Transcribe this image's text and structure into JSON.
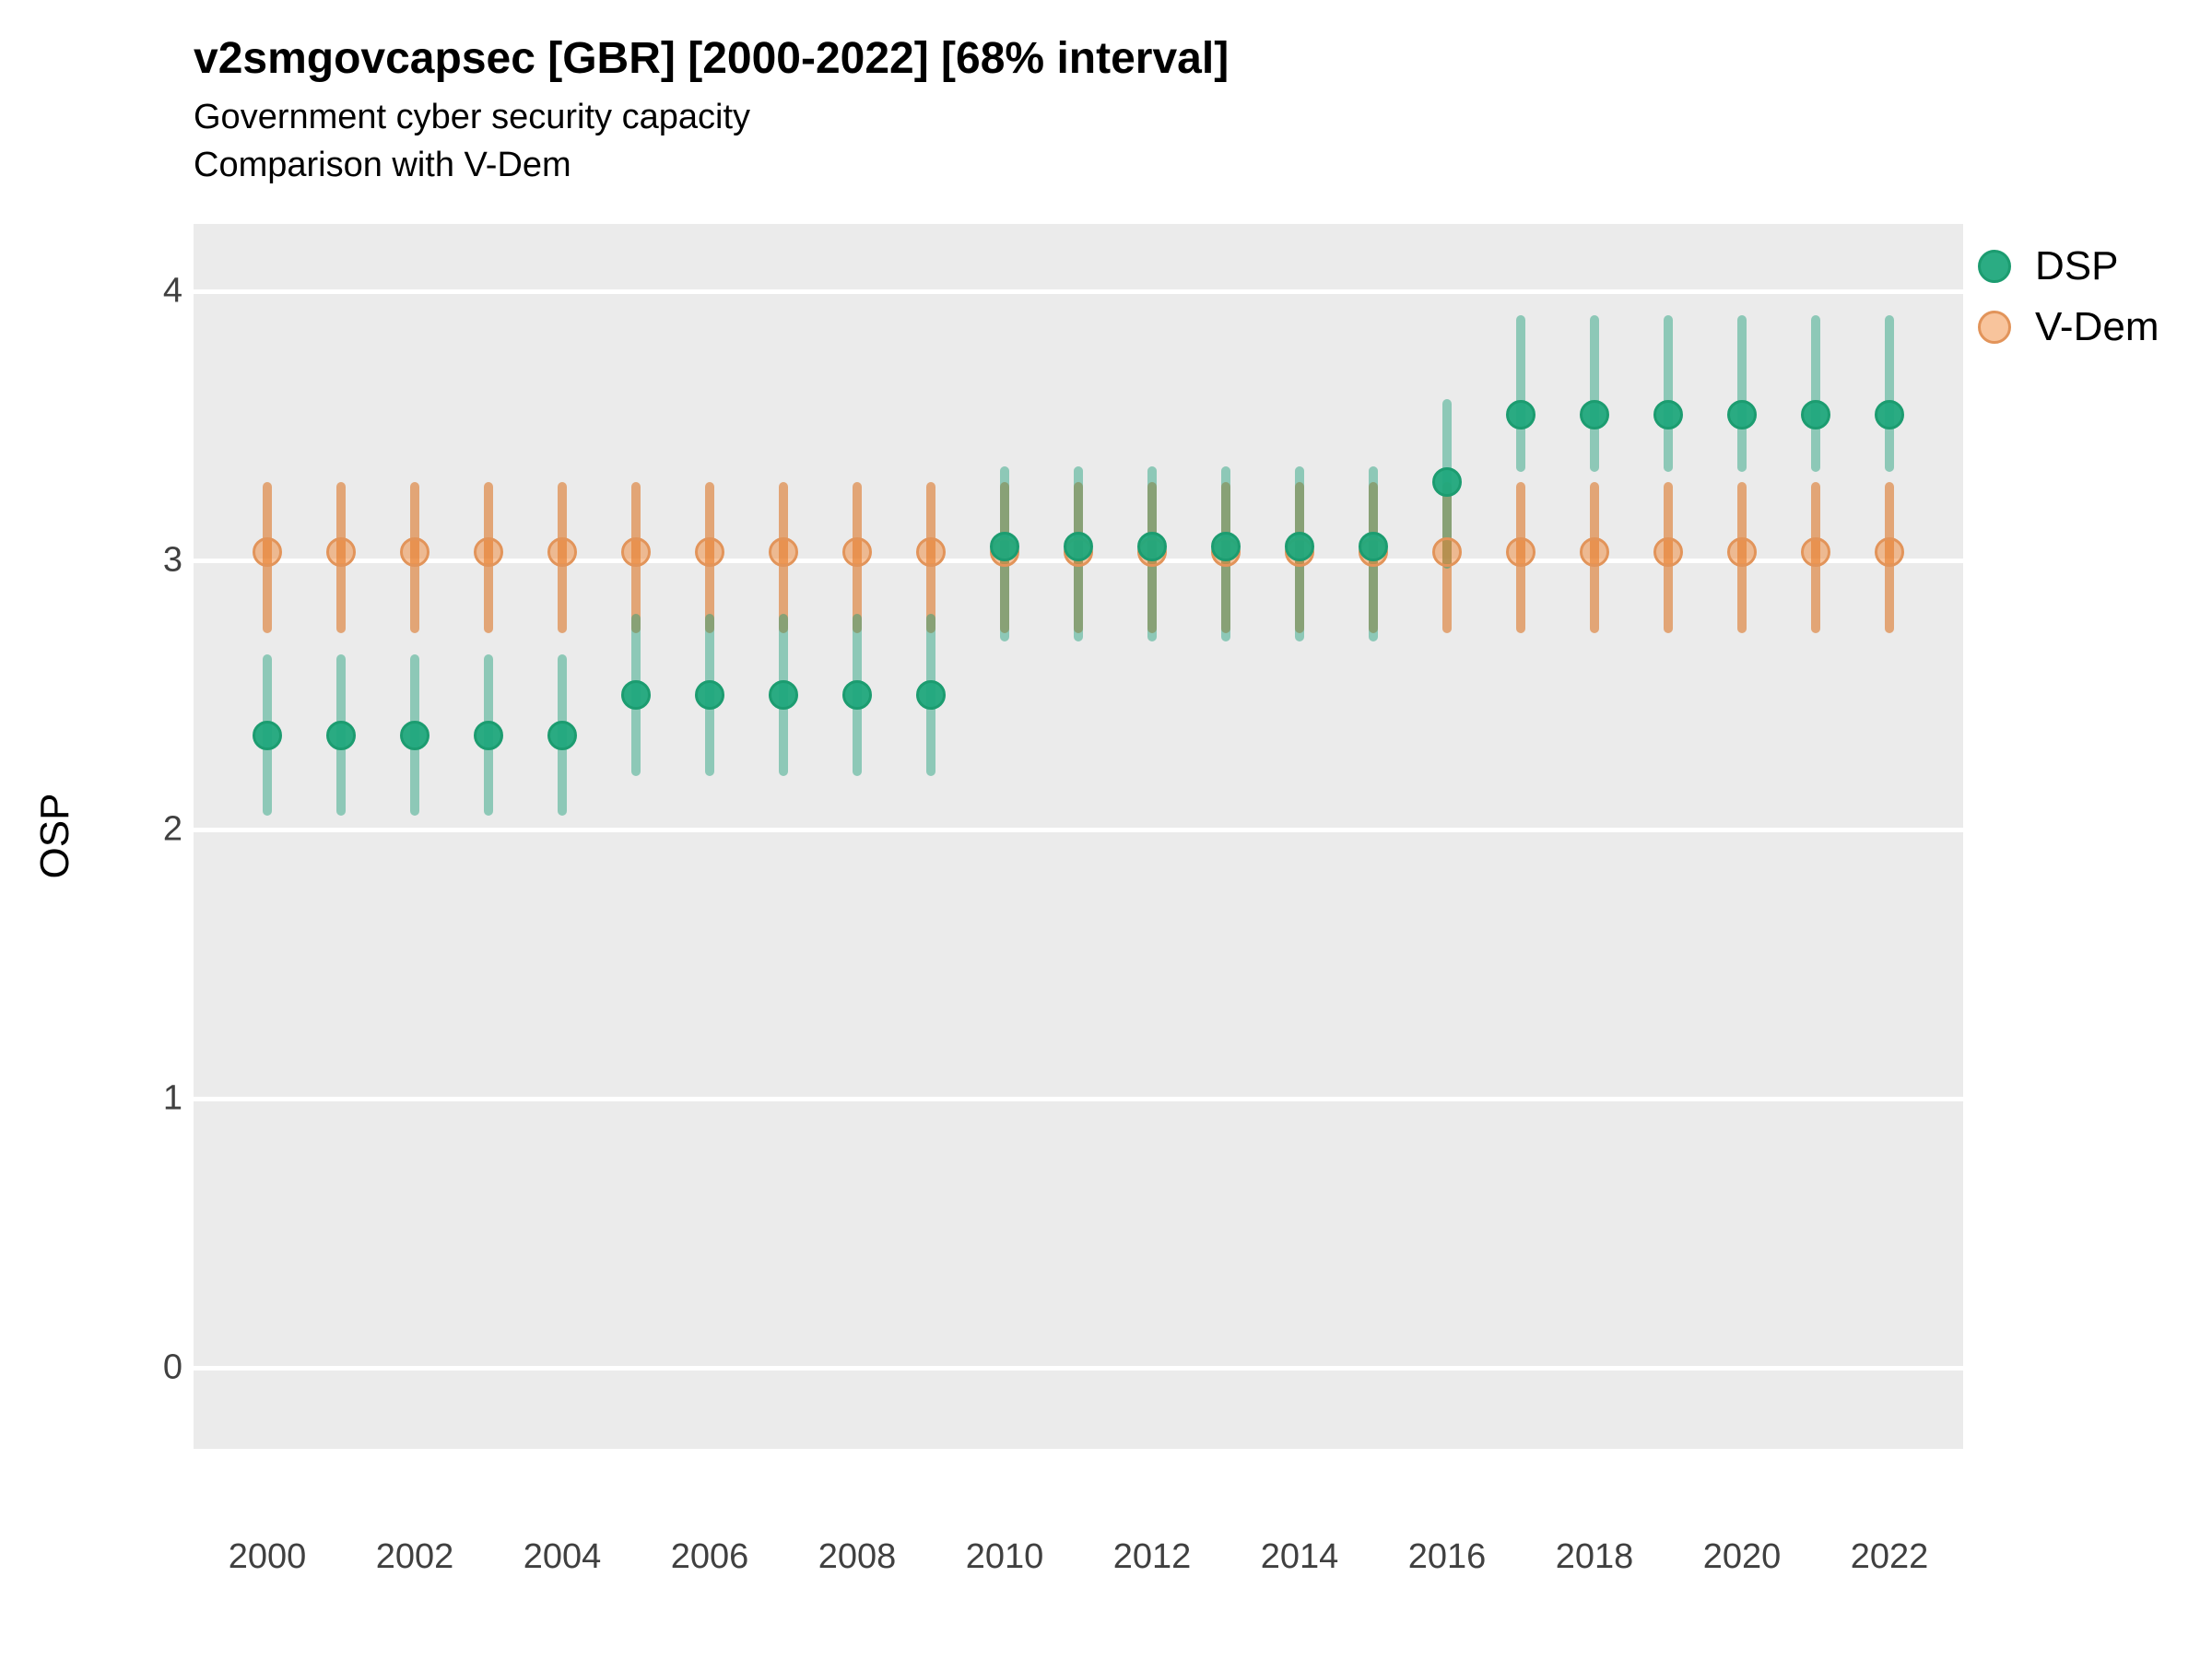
{
  "header": {
    "title": "v2smgovcapsec [GBR] [2000-2022] [68% interval]",
    "subtitle1": "Government cyber security capacity",
    "subtitle2": "Comparison with V-Dem"
  },
  "chart_data": {
    "type": "scatter",
    "subtype": "pointrange-comparison",
    "title": "v2smgovcapsec [GBR] [2000-2022] [68% interval]",
    "subtitle": [
      "Government cyber security capacity",
      "Comparison with V-Dem"
    ],
    "variable": "v2smgovcapsec",
    "country": "GBR",
    "interval": "68%",
    "xlabel": "",
    "ylabel": "OSP",
    "ylim": [
      -0.3,
      4.25
    ],
    "yticks": [
      0,
      1,
      2,
      3,
      4
    ],
    "xticks": [
      2000,
      2002,
      2004,
      2006,
      2008,
      2010,
      2012,
      2014,
      2016,
      2018,
      2020,
      2022
    ],
    "grid": "major horizontal white lines on gray panel",
    "panel_bg": "#EBEBEB",
    "gridline_color": "#FFFFFF",
    "tick_label_color": "#404040",
    "legend_position": "right",
    "series": [
      {
        "name": "DSP",
        "point_fill": "rgba(32,168,124,0.95)",
        "point_stroke": "#1C9C70",
        "bar_color": "rgba(27,158,119,0.45)",
        "points": [
          {
            "year": 2000,
            "est": 2.35,
            "lo": 2.05,
            "hi": 2.65
          },
          {
            "year": 2001,
            "est": 2.35,
            "lo": 2.05,
            "hi": 2.65
          },
          {
            "year": 2002,
            "est": 2.35,
            "lo": 2.05,
            "hi": 2.65
          },
          {
            "year": 2003,
            "est": 2.35,
            "lo": 2.05,
            "hi": 2.65
          },
          {
            "year": 2004,
            "est": 2.35,
            "lo": 2.05,
            "hi": 2.65
          },
          {
            "year": 2005,
            "est": 2.5,
            "lo": 2.2,
            "hi": 2.8
          },
          {
            "year": 2006,
            "est": 2.5,
            "lo": 2.2,
            "hi": 2.8
          },
          {
            "year": 2007,
            "est": 2.5,
            "lo": 2.2,
            "hi": 2.8
          },
          {
            "year": 2008,
            "est": 2.5,
            "lo": 2.2,
            "hi": 2.8
          },
          {
            "year": 2009,
            "est": 2.5,
            "lo": 2.2,
            "hi": 2.8
          },
          {
            "year": 2010,
            "est": 3.05,
            "lo": 2.7,
            "hi": 3.35
          },
          {
            "year": 2011,
            "est": 3.05,
            "lo": 2.7,
            "hi": 3.35
          },
          {
            "year": 2012,
            "est": 3.05,
            "lo": 2.7,
            "hi": 3.35
          },
          {
            "year": 2013,
            "est": 3.05,
            "lo": 2.7,
            "hi": 3.35
          },
          {
            "year": 2014,
            "est": 3.05,
            "lo": 2.7,
            "hi": 3.35
          },
          {
            "year": 2015,
            "est": 3.05,
            "lo": 2.7,
            "hi": 3.35
          },
          {
            "year": 2016,
            "est": 3.29,
            "lo": 2.97,
            "hi": 3.6
          },
          {
            "year": 2017,
            "est": 3.54,
            "lo": 3.33,
            "hi": 3.91
          },
          {
            "year": 2018,
            "est": 3.54,
            "lo": 3.33,
            "hi": 3.91
          },
          {
            "year": 2019,
            "est": 3.54,
            "lo": 3.33,
            "hi": 3.91
          },
          {
            "year": 2020,
            "est": 3.54,
            "lo": 3.33,
            "hi": 3.91
          },
          {
            "year": 2021,
            "est": 3.54,
            "lo": 3.33,
            "hi": 3.91
          },
          {
            "year": 2022,
            "est": 3.54,
            "lo": 3.33,
            "hi": 3.91
          }
        ]
      },
      {
        "name": "V-Dem",
        "point_fill": "rgba(240,125,35,0.45)",
        "point_stroke": "#E2945A",
        "bar_color": "rgba(217,95,2,0.5)",
        "points": [
          {
            "year": 2000,
            "est": 3.03,
            "lo": 2.73,
            "hi": 3.29
          },
          {
            "year": 2001,
            "est": 3.03,
            "lo": 2.73,
            "hi": 3.29
          },
          {
            "year": 2002,
            "est": 3.03,
            "lo": 2.73,
            "hi": 3.29
          },
          {
            "year": 2003,
            "est": 3.03,
            "lo": 2.73,
            "hi": 3.29
          },
          {
            "year": 2004,
            "est": 3.03,
            "lo": 2.73,
            "hi": 3.29
          },
          {
            "year": 2005,
            "est": 3.03,
            "lo": 2.73,
            "hi": 3.29
          },
          {
            "year": 2006,
            "est": 3.03,
            "lo": 2.73,
            "hi": 3.29
          },
          {
            "year": 2007,
            "est": 3.03,
            "lo": 2.73,
            "hi": 3.29
          },
          {
            "year": 2008,
            "est": 3.03,
            "lo": 2.73,
            "hi": 3.29
          },
          {
            "year": 2009,
            "est": 3.03,
            "lo": 2.73,
            "hi": 3.29
          },
          {
            "year": 2010,
            "est": 3.03,
            "lo": 2.73,
            "hi": 3.29
          },
          {
            "year": 2011,
            "est": 3.03,
            "lo": 2.73,
            "hi": 3.29
          },
          {
            "year": 2012,
            "est": 3.03,
            "lo": 2.73,
            "hi": 3.29
          },
          {
            "year": 2013,
            "est": 3.03,
            "lo": 2.73,
            "hi": 3.29
          },
          {
            "year": 2014,
            "est": 3.03,
            "lo": 2.73,
            "hi": 3.29
          },
          {
            "year": 2015,
            "est": 3.03,
            "lo": 2.73,
            "hi": 3.29
          },
          {
            "year": 2016,
            "est": 3.03,
            "lo": 2.73,
            "hi": 3.29
          },
          {
            "year": 2017,
            "est": 3.03,
            "lo": 2.73,
            "hi": 3.29
          },
          {
            "year": 2018,
            "est": 3.03,
            "lo": 2.73,
            "hi": 3.29
          },
          {
            "year": 2019,
            "est": 3.03,
            "lo": 2.73,
            "hi": 3.29
          },
          {
            "year": 2020,
            "est": 3.03,
            "lo": 2.73,
            "hi": 3.29
          },
          {
            "year": 2021,
            "est": 3.03,
            "lo": 2.73,
            "hi": 3.29
          },
          {
            "year": 2022,
            "est": 3.03,
            "lo": 2.73,
            "hi": 3.29
          }
        ]
      }
    ]
  },
  "legend": {
    "items": [
      {
        "label": "DSP"
      },
      {
        "label": "V-Dem"
      }
    ]
  }
}
